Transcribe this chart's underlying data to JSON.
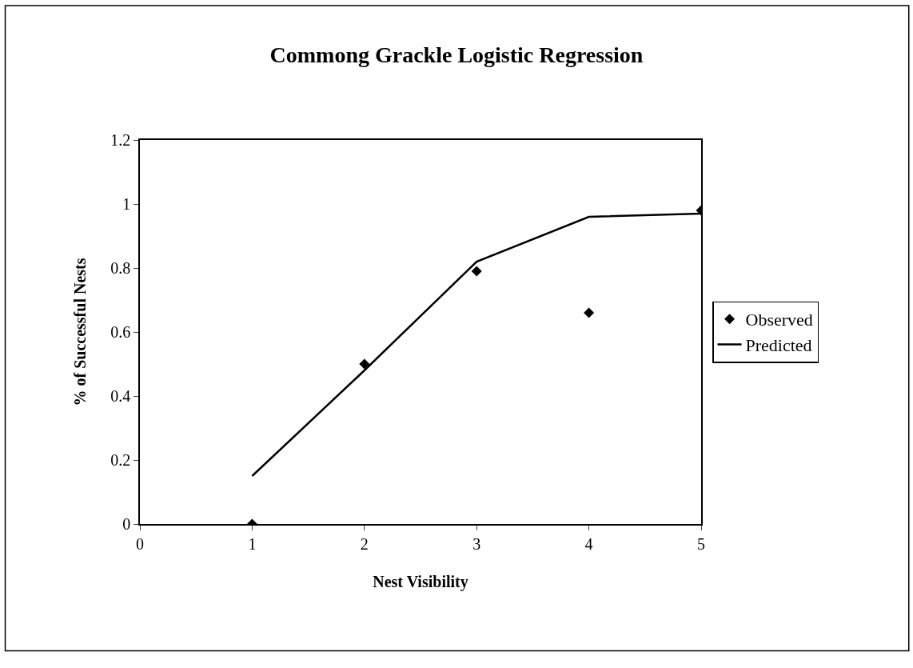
{
  "chart_data": {
    "type": "scatter",
    "title": "Commong Grackle Logistic Regression",
    "xlabel": "Nest Visibility",
    "ylabel": "% of Successful Nests",
    "x": [
      1,
      2,
      3,
      4,
      5
    ],
    "series": [
      {
        "name": "Observed",
        "color": "#000000",
        "marker": "diamond",
        "values": [
          0,
          0.5,
          0.79,
          0.66,
          0.98
        ]
      },
      {
        "name": "Predicted",
        "type": "line",
        "color": "#000000",
        "marker": "none",
        "line_style": "solid",
        "values": [
          0.15,
          0.48,
          0.82,
          0.96,
          0.97
        ]
      }
    ],
    "xlim": [
      0,
      5
    ],
    "xticks": [
      0,
      1,
      2,
      3,
      4,
      5
    ],
    "ylim": [
      0,
      1.2
    ],
    "yticks": [
      0,
      0.2,
      0.4,
      0.6,
      0.8,
      1,
      1.2
    ],
    "grid": false,
    "legend": "right"
  }
}
